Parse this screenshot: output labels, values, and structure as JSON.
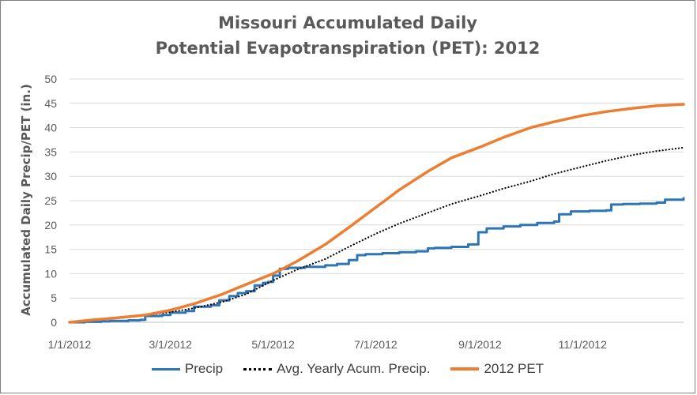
{
  "chart_data": {
    "type": "line",
    "title_line1": "Missouri Accumulated Daily",
    "title_line2": "Potential Evapotranspiration (PET): 2012",
    "xlabel": "",
    "ylabel": "Accumulated Daily Precip/PET (in.)",
    "ylim": [
      0,
      50
    ],
    "yticks": [
      0,
      5,
      10,
      15,
      20,
      25,
      30,
      35,
      40,
      45,
      50
    ],
    "xlim": [
      "2012-01-01",
      "2012-12-31"
    ],
    "xticks": [
      {
        "date": "2012-01-01",
        "label": "1/1/2012"
      },
      {
        "date": "2012-03-01",
        "label": "3/1/2012"
      },
      {
        "date": "2012-05-01",
        "label": "5/1/2012"
      },
      {
        "date": "2012-07-01",
        "label": "7/1/2012"
      },
      {
        "date": "2012-09-01",
        "label": "9/1/2012"
      },
      {
        "date": "2012-11-01",
        "label": "11/1/2012"
      }
    ],
    "grid": true,
    "legend_position": "bottom",
    "series": [
      {
        "name": "Precip",
        "color": "#2e75b6",
        "style": "solid",
        "step": true,
        "points": [
          [
            "2012-01-01",
            0
          ],
          [
            "2012-01-10",
            0.1
          ],
          [
            "2012-01-20",
            0.2
          ],
          [
            "2012-01-25",
            0.3
          ],
          [
            "2012-02-05",
            0.4
          ],
          [
            "2012-02-12",
            0.5
          ],
          [
            "2012-02-15",
            1.3
          ],
          [
            "2012-02-25",
            1.5
          ],
          [
            "2012-03-01",
            2.0
          ],
          [
            "2012-03-10",
            2.3
          ],
          [
            "2012-03-15",
            3.2
          ],
          [
            "2012-03-25",
            3.5
          ],
          [
            "2012-03-30",
            4.5
          ],
          [
            "2012-04-05",
            5.4
          ],
          [
            "2012-04-10",
            6.0
          ],
          [
            "2012-04-15",
            6.4
          ],
          [
            "2012-04-20",
            7.6
          ],
          [
            "2012-04-25",
            8.1
          ],
          [
            "2012-04-28",
            8.3
          ],
          [
            "2012-05-01",
            9.6
          ],
          [
            "2012-05-05",
            11.0
          ],
          [
            "2012-05-10",
            11.2
          ],
          [
            "2012-05-20",
            11.4
          ],
          [
            "2012-06-01",
            11.7
          ],
          [
            "2012-06-08",
            12.0
          ],
          [
            "2012-06-15",
            12.8
          ],
          [
            "2012-06-20",
            13.8
          ],
          [
            "2012-06-25",
            14.0
          ],
          [
            "2012-07-05",
            14.2
          ],
          [
            "2012-07-15",
            14.4
          ],
          [
            "2012-07-25",
            14.6
          ],
          [
            "2012-08-01",
            15.2
          ],
          [
            "2012-08-05",
            15.3
          ],
          [
            "2012-08-15",
            15.5
          ],
          [
            "2012-08-25",
            16.0
          ],
          [
            "2012-08-31",
            18.5
          ],
          [
            "2012-09-05",
            19.3
          ],
          [
            "2012-09-15",
            19.7
          ],
          [
            "2012-09-25",
            20.0
          ],
          [
            "2012-10-05",
            20.4
          ],
          [
            "2012-10-15",
            20.7
          ],
          [
            "2012-10-18",
            22.2
          ],
          [
            "2012-10-25",
            22.8
          ],
          [
            "2012-11-05",
            22.9
          ],
          [
            "2012-11-15",
            23.0
          ],
          [
            "2012-11-18",
            24.2
          ],
          [
            "2012-11-25",
            24.3
          ],
          [
            "2012-12-05",
            24.4
          ],
          [
            "2012-12-15",
            24.6
          ],
          [
            "2012-12-20",
            25.2
          ],
          [
            "2012-12-31",
            25.5
          ]
        ]
      },
      {
        "name": "Avg. Yearly Acum. Precip.",
        "color": "#000000",
        "style": "dotted",
        "step": false,
        "points": [
          [
            "2012-01-01",
            0
          ],
          [
            "2012-01-15",
            0.5
          ],
          [
            "2012-02-01",
            1.0
          ],
          [
            "2012-02-15",
            1.5
          ],
          [
            "2012-03-01",
            2.1
          ],
          [
            "2012-03-15",
            2.9
          ],
          [
            "2012-04-01",
            4.2
          ],
          [
            "2012-04-15",
            5.8
          ],
          [
            "2012-05-01",
            8.6
          ],
          [
            "2012-05-15",
            10.8
          ],
          [
            "2012-06-01",
            13.0
          ],
          [
            "2012-06-15",
            15.5
          ],
          [
            "2012-07-01",
            18.2
          ],
          [
            "2012-07-15",
            20.3
          ],
          [
            "2012-08-01",
            22.5
          ],
          [
            "2012-08-15",
            24.3
          ],
          [
            "2012-09-01",
            26.0
          ],
          [
            "2012-09-15",
            27.5
          ],
          [
            "2012-10-01",
            29.0
          ],
          [
            "2012-10-15",
            30.5
          ],
          [
            "2012-11-01",
            32.0
          ],
          [
            "2012-11-15",
            33.2
          ],
          [
            "2012-12-01",
            34.4
          ],
          [
            "2012-12-15",
            35.2
          ],
          [
            "2012-12-31",
            35.9
          ]
        ]
      },
      {
        "name": "2012 PET",
        "color": "#ed7d31",
        "style": "solid",
        "step": false,
        "points": [
          [
            "2012-01-01",
            0
          ],
          [
            "2012-01-15",
            0.5
          ],
          [
            "2012-02-01",
            1.0
          ],
          [
            "2012-02-15",
            1.5
          ],
          [
            "2012-03-01",
            2.5
          ],
          [
            "2012-03-15",
            3.8
          ],
          [
            "2012-04-01",
            5.8
          ],
          [
            "2012-04-15",
            7.8
          ],
          [
            "2012-05-01",
            10.0
          ],
          [
            "2012-05-15",
            12.5
          ],
          [
            "2012-06-01",
            16.0
          ],
          [
            "2012-06-15",
            19.5
          ],
          [
            "2012-07-01",
            23.6
          ],
          [
            "2012-07-15",
            27.2
          ],
          [
            "2012-08-01",
            31.0
          ],
          [
            "2012-08-15",
            33.8
          ],
          [
            "2012-09-01",
            36.0
          ],
          [
            "2012-09-15",
            38.0
          ],
          [
            "2012-10-01",
            40.0
          ],
          [
            "2012-10-15",
            41.2
          ],
          [
            "2012-11-01",
            42.5
          ],
          [
            "2012-11-15",
            43.3
          ],
          [
            "2012-12-01",
            44.0
          ],
          [
            "2012-12-15",
            44.5
          ],
          [
            "2012-12-31",
            44.8
          ]
        ]
      }
    ]
  }
}
